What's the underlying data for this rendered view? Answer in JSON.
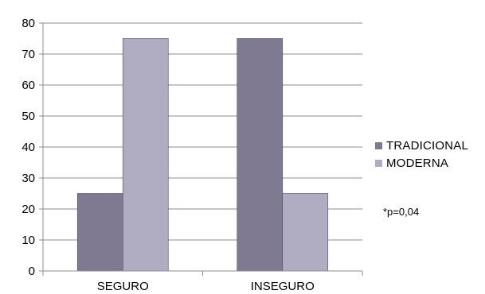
{
  "chart_data": {
    "type": "bar",
    "categories": [
      "SEGURO",
      "INSEGURO"
    ],
    "series": [
      {
        "name": "TRADICIONAL",
        "values": [
          25,
          75
        ],
        "color": "#7f7a91"
      },
      {
        "name": "MODERNA",
        "values": [
          75,
          25
        ],
        "color": "#b0adc3"
      }
    ],
    "ylim": [
      0,
      80
    ],
    "yticks": [
      0,
      10,
      20,
      30,
      40,
      50,
      60,
      70,
      80
    ],
    "grid": true,
    "legend_position": "right",
    "annotation": "*p=0,04"
  }
}
